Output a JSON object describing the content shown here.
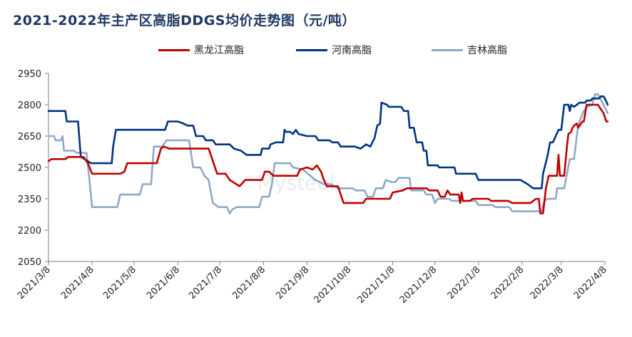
{
  "chart_data": {
    "type": "line",
    "title": "2021-2022年主产区高脂DDGS均价走势图（元/吨）",
    "watermark": "Mysteel",
    "ylim": [
      2050,
      2950
    ],
    "yticks": [
      2050,
      2200,
      2350,
      2500,
      2650,
      2800,
      2950
    ],
    "xticks": [
      "2021/3/8",
      "2021/4/8",
      "2021/5/8",
      "2021/6/8",
      "2021/7/8",
      "2021/8/8",
      "2021/9/8",
      "2021/10/8",
      "2021/11/8",
      "2021/12/8",
      "2022/1/8",
      "2022/2/8",
      "2022/3/8",
      "2022/4/8"
    ],
    "x_range": [
      "2021-03-08",
      "2022-04-08"
    ],
    "grid": false,
    "legend_position": "top",
    "series": [
      {
        "name": "黑龙江高脂",
        "color": "#c00000",
        "points": [
          [
            "2021-03-08",
            2530
          ],
          [
            "2021-03-10",
            2540
          ],
          [
            "2021-03-20",
            2540
          ],
          [
            "2021-03-22",
            2550
          ],
          [
            "2021-04-02",
            2550
          ],
          [
            "2021-04-05",
            2520
          ],
          [
            "2021-04-08",
            2470
          ],
          [
            "2021-04-28",
            2470
          ],
          [
            "2021-05-01",
            2480
          ],
          [
            "2021-05-03",
            2520
          ],
          [
            "2021-05-24",
            2520
          ],
          [
            "2021-05-27",
            2590
          ],
          [
            "2021-05-29",
            2600
          ],
          [
            "2021-06-02",
            2590
          ],
          [
            "2021-06-30",
            2590
          ],
          [
            "2021-07-03",
            2530
          ],
          [
            "2021-07-06",
            2470
          ],
          [
            "2021-07-12",
            2470
          ],
          [
            "2021-07-15",
            2440
          ],
          [
            "2021-07-22",
            2410
          ],
          [
            "2021-07-26",
            2440
          ],
          [
            "2021-08-07",
            2440
          ],
          [
            "2021-08-09",
            2480
          ],
          [
            "2021-08-12",
            2480
          ],
          [
            "2021-08-15",
            2460
          ],
          [
            "2021-09-01",
            2460
          ],
          [
            "2021-09-03",
            2490
          ],
          [
            "2021-09-08",
            2500
          ],
          [
            "2021-09-12",
            2490
          ],
          [
            "2021-09-15",
            2510
          ],
          [
            "2021-09-18",
            2480
          ],
          [
            "2021-09-20",
            2440
          ],
          [
            "2021-09-22",
            2410
          ],
          [
            "2021-09-30",
            2410
          ],
          [
            "2021-10-04",
            2330
          ],
          [
            "2021-10-18",
            2330
          ],
          [
            "2021-10-20",
            2350
          ],
          [
            "2021-11-06",
            2350
          ],
          [
            "2021-11-08",
            2380
          ],
          [
            "2021-11-15",
            2390
          ],
          [
            "2021-11-18",
            2400
          ],
          [
            "2021-12-02",
            2400
          ],
          [
            "2021-12-04",
            2390
          ],
          [
            "2021-12-10",
            2390
          ],
          [
            "2021-12-12",
            2360
          ],
          [
            "2021-12-15",
            2360
          ],
          [
            "2021-12-17",
            2390
          ],
          [
            "2021-12-19",
            2370
          ],
          [
            "2021-12-25",
            2370
          ],
          [
            "2021-12-26",
            2330
          ],
          [
            "2021-12-27",
            2380
          ],
          [
            "2021-12-28",
            2340
          ],
          [
            "2022-01-02",
            2340
          ],
          [
            "2022-01-04",
            2350
          ],
          [
            "2022-01-15",
            2350
          ],
          [
            "2022-01-17",
            2340
          ],
          [
            "2022-01-29",
            2340
          ],
          [
            "2022-02-01",
            2330
          ],
          [
            "2022-02-14",
            2330
          ],
          [
            "2022-02-18",
            2350
          ],
          [
            "2022-02-20",
            2350
          ],
          [
            "2022-02-21",
            2280
          ],
          [
            "2022-02-23",
            2280
          ],
          [
            "2022-02-25",
            2400
          ],
          [
            "2022-02-27",
            2460
          ],
          [
            "2022-03-05",
            2460
          ],
          [
            "2022-03-06",
            2560
          ],
          [
            "2022-03-07",
            2460
          ],
          [
            "2022-03-10",
            2460
          ],
          [
            "2022-03-12",
            2600
          ],
          [
            "2022-03-13",
            2660
          ],
          [
            "2022-03-15",
            2670
          ],
          [
            "2022-03-16",
            2690
          ],
          [
            "2022-03-17",
            2700
          ],
          [
            "2022-03-19",
            2710
          ],
          [
            "2022-03-20",
            2690
          ],
          [
            "2022-03-23",
            2720
          ],
          [
            "2022-03-24",
            2720
          ],
          [
            "2022-03-26",
            2800
          ],
          [
            "2022-04-03",
            2800
          ],
          [
            "2022-04-05",
            2780
          ],
          [
            "2022-04-07",
            2760
          ],
          [
            "2022-04-08",
            2740
          ],
          [
            "2022-04-09",
            2720
          ],
          [
            "2022-04-10",
            2720
          ]
        ]
      },
      {
        "name": "河南高脂",
        "color": "#003380",
        "points": [
          [
            "2021-03-08",
            2770
          ],
          [
            "2021-03-20",
            2770
          ],
          [
            "2021-03-21",
            2720
          ],
          [
            "2021-03-29",
            2720
          ],
          [
            "2021-03-31",
            2550
          ],
          [
            "2021-04-05",
            2530
          ],
          [
            "2021-04-07",
            2520
          ],
          [
            "2021-04-22",
            2520
          ],
          [
            "2021-04-23",
            2600
          ],
          [
            "2021-04-25",
            2680
          ],
          [
            "2021-05-30",
            2680
          ],
          [
            "2021-06-01",
            2720
          ],
          [
            "2021-06-08",
            2720
          ],
          [
            "2021-06-12",
            2710
          ],
          [
            "2021-06-15",
            2700
          ],
          [
            "2021-06-19",
            2700
          ],
          [
            "2021-06-21",
            2650
          ],
          [
            "2021-06-26",
            2650
          ],
          [
            "2021-06-28",
            2630
          ],
          [
            "2021-07-03",
            2630
          ],
          [
            "2021-07-05",
            2610
          ],
          [
            "2021-07-15",
            2610
          ],
          [
            "2021-07-18",
            2590
          ],
          [
            "2021-07-23",
            2580
          ],
          [
            "2021-07-27",
            2560
          ],
          [
            "2021-08-06",
            2560
          ],
          [
            "2021-08-07",
            2590
          ],
          [
            "2021-08-12",
            2590
          ],
          [
            "2021-08-13",
            2610
          ],
          [
            "2021-08-17",
            2620
          ],
          [
            "2021-08-22",
            2620
          ],
          [
            "2021-08-23",
            2680
          ],
          [
            "2021-08-24",
            2670
          ],
          [
            "2021-08-27",
            2670
          ],
          [
            "2021-08-29",
            2660
          ],
          [
            "2021-08-31",
            2680
          ],
          [
            "2021-09-02",
            2660
          ],
          [
            "2021-09-08",
            2650
          ],
          [
            "2021-09-14",
            2650
          ],
          [
            "2021-09-16",
            2630
          ],
          [
            "2021-09-24",
            2630
          ],
          [
            "2021-09-26",
            2620
          ],
          [
            "2021-09-30",
            2620
          ],
          [
            "2021-10-02",
            2600
          ],
          [
            "2021-10-12",
            2600
          ],
          [
            "2021-10-16",
            2590
          ],
          [
            "2021-10-20",
            2610
          ],
          [
            "2021-10-23",
            2600
          ],
          [
            "2021-10-26",
            2640
          ],
          [
            "2021-10-28",
            2700
          ],
          [
            "2021-10-30",
            2710
          ],
          [
            "2021-10-31",
            2810
          ],
          [
            "2021-11-04",
            2800
          ],
          [
            "2021-11-05",
            2790
          ],
          [
            "2021-11-14",
            2790
          ],
          [
            "2021-11-16",
            2770
          ],
          [
            "2021-11-19",
            2770
          ],
          [
            "2021-11-20",
            2690
          ],
          [
            "2021-11-23",
            2690
          ],
          [
            "2021-11-25",
            2620
          ],
          [
            "2021-11-29",
            2620
          ],
          [
            "2021-11-30",
            2580
          ],
          [
            "2021-12-02",
            2580
          ],
          [
            "2021-12-03",
            2510
          ],
          [
            "2021-12-10",
            2510
          ],
          [
            "2021-12-11",
            2500
          ],
          [
            "2021-12-22",
            2500
          ],
          [
            "2021-12-23",
            2470
          ],
          [
            "2022-01-06",
            2470
          ],
          [
            "2022-01-08",
            2440
          ],
          [
            "2022-02-07",
            2440
          ],
          [
            "2022-02-12",
            2420
          ],
          [
            "2022-02-16",
            2400
          ],
          [
            "2022-02-22",
            2400
          ],
          [
            "2022-02-23",
            2470
          ],
          [
            "2022-02-26",
            2550
          ],
          [
            "2022-02-28",
            2620
          ],
          [
            "2022-03-02",
            2620
          ],
          [
            "2022-03-06",
            2680
          ],
          [
            "2022-03-08",
            2680
          ],
          [
            "2022-03-10",
            2800
          ],
          [
            "2022-03-13",
            2800
          ],
          [
            "2022-03-14",
            2770
          ],
          [
            "2022-03-15",
            2800
          ],
          [
            "2022-03-17",
            2790
          ],
          [
            "2022-03-21",
            2810
          ],
          [
            "2022-03-25",
            2810
          ],
          [
            "2022-03-26",
            2820
          ],
          [
            "2022-03-29",
            2820
          ],
          [
            "2022-03-30",
            2830
          ],
          [
            "2022-04-04",
            2830
          ],
          [
            "2022-04-05",
            2840
          ],
          [
            "2022-04-07",
            2840
          ],
          [
            "2022-04-08",
            2830
          ],
          [
            "2022-04-10",
            2800
          ]
        ]
      },
      {
        "name": "吉林高脂",
        "color": "#8ea9c8",
        "points": [
          [
            "2021-03-08",
            2650
          ],
          [
            "2021-03-12",
            2650
          ],
          [
            "2021-03-13",
            2630
          ],
          [
            "2021-03-17",
            2630
          ],
          [
            "2021-03-18",
            2650
          ],
          [
            "2021-03-19",
            2580
          ],
          [
            "2021-03-26",
            2580
          ],
          [
            "2021-03-28",
            2570
          ],
          [
            "2021-04-04",
            2570
          ],
          [
            "2021-04-06",
            2450
          ],
          [
            "2021-04-08",
            2310
          ],
          [
            "2021-04-26",
            2310
          ],
          [
            "2021-04-28",
            2370
          ],
          [
            "2021-05-12",
            2370
          ],
          [
            "2021-05-14",
            2420
          ],
          [
            "2021-05-20",
            2420
          ],
          [
            "2021-05-22",
            2600
          ],
          [
            "2021-05-28",
            2600
          ],
          [
            "2021-05-31",
            2630
          ],
          [
            "2021-06-16",
            2630
          ],
          [
            "2021-06-19",
            2500
          ],
          [
            "2021-06-24",
            2500
          ],
          [
            "2021-06-27",
            2460
          ],
          [
            "2021-06-30",
            2440
          ],
          [
            "2021-07-01",
            2400
          ],
          [
            "2021-07-03",
            2330
          ],
          [
            "2021-07-07",
            2310
          ],
          [
            "2021-07-13",
            2310
          ],
          [
            "2021-07-15",
            2280
          ],
          [
            "2021-07-17",
            2300
          ],
          [
            "2021-07-20",
            2310
          ],
          [
            "2021-07-28",
            2310
          ],
          [
            "2021-08-05",
            2310
          ],
          [
            "2021-08-07",
            2360
          ],
          [
            "2021-08-12",
            2360
          ],
          [
            "2021-08-14",
            2420
          ],
          [
            "2021-08-16",
            2520
          ],
          [
            "2021-08-27",
            2520
          ],
          [
            "2021-08-29",
            2500
          ],
          [
            "2021-09-05",
            2490
          ],
          [
            "2021-09-14",
            2440
          ],
          [
            "2021-09-20",
            2420
          ],
          [
            "2021-09-25",
            2420
          ],
          [
            "2021-09-30",
            2400
          ],
          [
            "2021-10-10",
            2400
          ],
          [
            "2021-10-13",
            2390
          ],
          [
            "2021-10-19",
            2390
          ],
          [
            "2021-10-21",
            2360
          ],
          [
            "2021-10-25",
            2360
          ],
          [
            "2021-10-27",
            2400
          ],
          [
            "2021-11-01",
            2400
          ],
          [
            "2021-11-03",
            2440
          ],
          [
            "2021-11-07",
            2430
          ],
          [
            "2021-11-10",
            2430
          ],
          [
            "2021-11-12",
            2450
          ],
          [
            "2021-11-20",
            2450
          ],
          [
            "2021-11-21",
            2390
          ],
          [
            "2021-11-30",
            2390
          ],
          [
            "2021-12-02",
            2370
          ],
          [
            "2021-12-06",
            2370
          ],
          [
            "2021-12-08",
            2330
          ],
          [
            "2021-12-10",
            2350
          ],
          [
            "2021-12-18",
            2350
          ],
          [
            "2021-12-20",
            2340
          ],
          [
            "2022-01-06",
            2340
          ],
          [
            "2022-01-08",
            2320
          ],
          [
            "2022-01-18",
            2320
          ],
          [
            "2022-01-20",
            2310
          ],
          [
            "2022-01-30",
            2310
          ],
          [
            "2022-02-01",
            2290
          ],
          [
            "2022-02-22",
            2290
          ],
          [
            "2022-02-24",
            2340
          ],
          [
            "2022-02-26",
            2350
          ],
          [
            "2022-03-04",
            2350
          ],
          [
            "2022-03-05",
            2400
          ],
          [
            "2022-03-10",
            2400
          ],
          [
            "2022-03-12",
            2470
          ],
          [
            "2022-03-14",
            2540
          ],
          [
            "2022-03-17",
            2540
          ],
          [
            "2022-03-19",
            2650
          ],
          [
            "2022-03-20",
            2700
          ],
          [
            "2022-03-22",
            2740
          ],
          [
            "2022-03-24",
            2770
          ],
          [
            "2022-03-26",
            2790
          ],
          [
            "2022-03-30",
            2800
          ],
          [
            "2022-04-01",
            2850
          ],
          [
            "2022-04-03",
            2850
          ],
          [
            "2022-04-07",
            2800
          ],
          [
            "2022-04-10",
            2760
          ]
        ]
      }
    ]
  }
}
